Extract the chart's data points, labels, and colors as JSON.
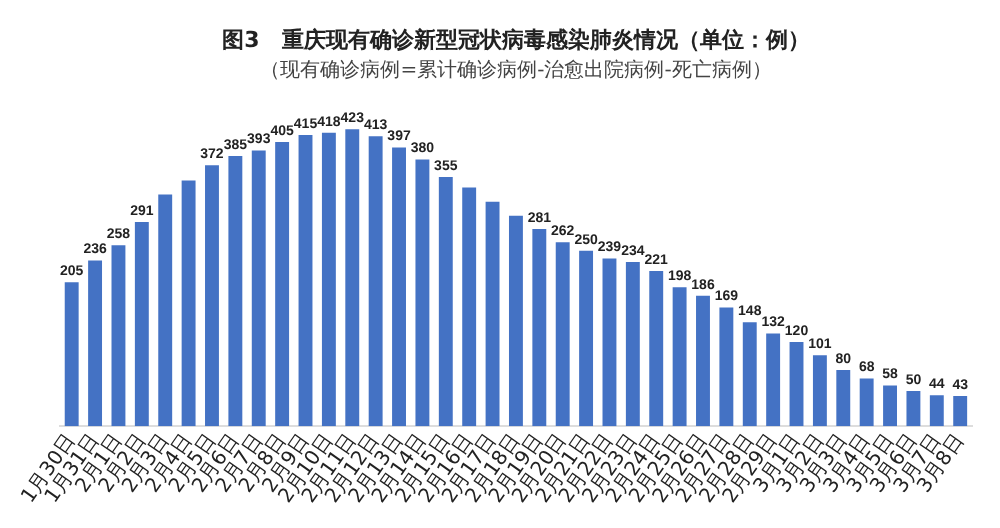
{
  "chart_data": {
    "type": "bar",
    "title": "图3　重庆现有确诊新型冠状病毒感染肺炎情况（单位：例）",
    "subtitle": "（现有确诊病例=累计确诊病例-治愈出院病例-死亡病例）",
    "categories": [
      "1月30日",
      "1月31日",
      "2月1日",
      "2月2日",
      "2月3日",
      "2月4日",
      "2月5日",
      "2月6日",
      "2月7日",
      "2月8日",
      "2月9日",
      "2月10日",
      "2月11日",
      "2月12日",
      "2月13日",
      "2月14日",
      "2月15日",
      "2月16日",
      "2月17日",
      "2月18日",
      "2月19日",
      "2月20日",
      "2月21日",
      "2月22日",
      "2月23日",
      "2月24日",
      "2月25日",
      "2月26日",
      "2月27日",
      "2月28日",
      "2月29日",
      "3月1日",
      "3月2日",
      "3月3日",
      "3月4日",
      "3月5日",
      "3月6日",
      "3月7日",
      "3月8日"
    ],
    "values": [
      205,
      236,
      258,
      291,
      330,
      350,
      372,
      385,
      393,
      405,
      415,
      418,
      423,
      413,
      397,
      380,
      355,
      340,
      320,
      300,
      281,
      262,
      250,
      239,
      234,
      221,
      198,
      186,
      169,
      148,
      132,
      120,
      101,
      80,
      68,
      58,
      50,
      44,
      43
    ],
    "value_labels": [
      "205",
      "236",
      "258",
      "291",
      null,
      null,
      "372",
      "385",
      "393",
      "405",
      "415",
      "418",
      "423",
      "413",
      "397",
      "380",
      "355",
      null,
      null,
      null,
      "281",
      "262",
      "250",
      "239",
      "234",
      "221",
      "198",
      "186",
      "169",
      "148",
      "132",
      "120",
      "101",
      "80",
      "68",
      "58",
      "50",
      "44",
      "43"
    ],
    "color": "#4472c4",
    "tick_labels": "x",
    "legend": false
  }
}
